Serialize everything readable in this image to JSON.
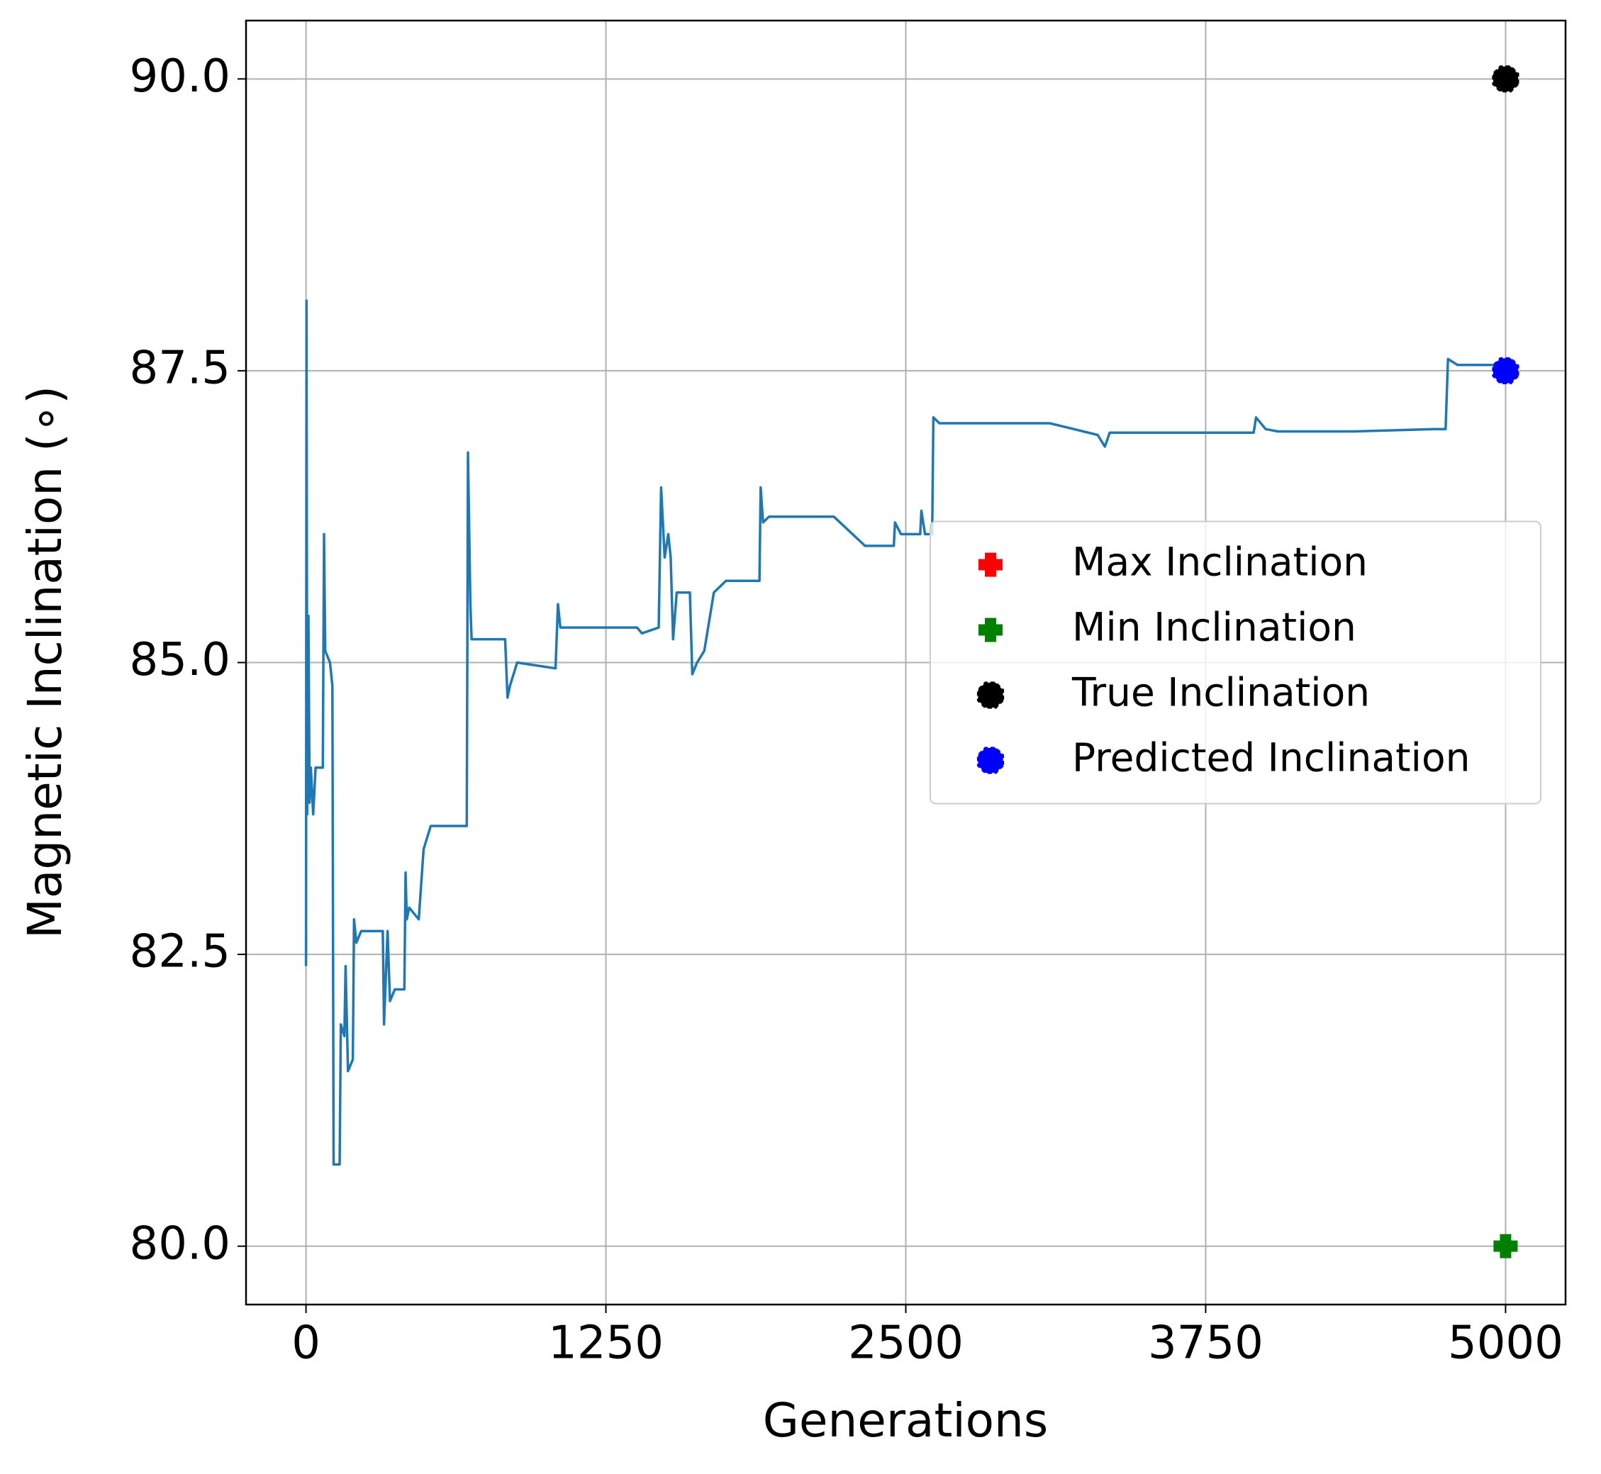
{
  "chart_data": {
    "type": "line",
    "xlabel": "Generations",
    "ylabel": "Magnetic Inclination (∘)",
    "x": [
      0,
      2,
      5,
      10,
      15,
      20,
      30,
      40,
      70,
      75,
      80,
      100,
      110,
      115,
      140,
      145,
      160,
      165,
      175,
      195,
      200,
      210,
      230,
      320,
      325,
      340,
      350,
      370,
      410,
      415,
      420,
      430,
      470,
      490,
      520,
      670,
      675,
      685,
      690,
      830,
      840,
      850,
      880,
      1040,
      1050,
      1060,
      1150,
      1380,
      1400,
      1470,
      1480,
      1495,
      1510,
      1520,
      1530,
      1545,
      1600,
      1610,
      1630,
      1660,
      1700,
      1750,
      1890,
      1895,
      1905,
      1930,
      2200,
      2330,
      2450,
      2455,
      2480,
      2560,
      2565,
      2580,
      2610,
      2615,
      2640,
      3100,
      3200,
      3300,
      3330,
      3350,
      3400,
      3950,
      3960,
      4000,
      4050,
      4370,
      4700,
      4750,
      4760,
      4800,
      5000
    ],
    "values": [
      82.4,
      88.1,
      83.7,
      85.4,
      83.8,
      84.1,
      83.7,
      84.1,
      84.1,
      86.1,
      85.1,
      85.0,
      84.8,
      80.7,
      80.7,
      81.9,
      81.8,
      82.4,
      81.5,
      81.6,
      82.8,
      82.6,
      82.7,
      82.7,
      81.9,
      82.7,
      82.1,
      82.2,
      82.2,
      83.2,
      82.8,
      82.9,
      82.8,
      83.4,
      83.6,
      83.6,
      86.8,
      85.5,
      85.2,
      85.2,
      84.7,
      84.8,
      85.0,
      84.95,
      85.5,
      85.3,
      85.3,
      85.3,
      85.25,
      85.3,
      86.5,
      85.9,
      86.1,
      85.9,
      85.2,
      85.6,
      85.6,
      84.9,
      85.0,
      85.1,
      85.6,
      85.7,
      85.7,
      86.5,
      86.2,
      86.25,
      86.25,
      86.0,
      86.0,
      86.2,
      86.1,
      86.1,
      86.3,
      86.1,
      86.1,
      87.1,
      87.05,
      87.05,
      87.0,
      86.95,
      86.85,
      86.97,
      86.97,
      86.97,
      87.1,
      87.0,
      86.98,
      86.98,
      87.0,
      87.0,
      87.6,
      87.55,
      87.55
    ],
    "color": "#1f77b4",
    "series": [
      {
        "name": "Max Inclination",
        "color": "#ff0000",
        "marker": "plus",
        "x": [
          5000
        ],
        "values": [
          90.0
        ]
      },
      {
        "name": "Min Inclination",
        "color": "#008000",
        "marker": "plus",
        "x": [
          5000
        ],
        "values": [
          80.0
        ]
      },
      {
        "name": "True Inclination",
        "color": "#000000",
        "marker": "octagon",
        "x": [
          5000
        ],
        "values": [
          90.0
        ]
      },
      {
        "name": "Predicted Inclination",
        "color": "#0000ff",
        "marker": "octagon",
        "x": [
          5000
        ],
        "values": [
          87.5
        ]
      }
    ],
    "xlim": [
      -250,
      5250
    ],
    "ylim": [
      79.5,
      90.5
    ],
    "xticks": [
      0,
      1250,
      2500,
      3750,
      5000
    ],
    "yticks": [
      {
        "value": 80,
        "label": "80.0"
      },
      {
        "value": 82.5,
        "label": "82.5"
      },
      {
        "value": 85,
        "label": "85.0"
      },
      {
        "value": 87.5,
        "label": "87.5"
      },
      {
        "value": 90,
        "label": "90.0"
      }
    ],
    "grid": true,
    "legend": "center right"
  }
}
